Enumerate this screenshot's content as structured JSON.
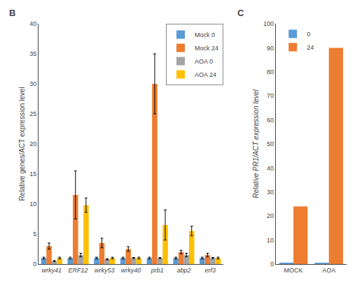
{
  "chart_data": [
    {
      "type": "bar",
      "title": "B",
      "categories": [
        "wrky41",
        "ERF12",
        "wrky53",
        "wrky40",
        "prb1",
        "abp2",
        "erf3"
      ],
      "series": [
        {
          "name": "Mock 0",
          "color": "#5B9BD5",
          "values": [
            1.0,
            1.0,
            1.0,
            1.0,
            1.0,
            1.0,
            1.0
          ],
          "errors": [
            0.15,
            0.15,
            0.15,
            0.15,
            0.15,
            0.15,
            0.15
          ]
        },
        {
          "name": "Mock 24",
          "color": "#ED7D31",
          "values": [
            3.0,
            11.5,
            3.5,
            2.5,
            30.0,
            2.0,
            1.5
          ],
          "errors": [
            0.5,
            4.0,
            0.8,
            0.4,
            5.0,
            0.3,
            0.3
          ]
        },
        {
          "name": "AOA 0",
          "color": "#A5A5A5",
          "values": [
            0.5,
            1.5,
            0.8,
            1.0,
            1.0,
            1.5,
            1.0
          ],
          "errors": [
            0.1,
            0.3,
            0.1,
            0.1,
            0.1,
            0.3,
            0.1
          ]
        },
        {
          "name": "AOA 24",
          "color": "#FFC000",
          "values": [
            1.0,
            9.8,
            1.0,
            1.0,
            6.5,
            5.5,
            1.0
          ],
          "errors": [
            0.15,
            1.2,
            0.15,
            0.15,
            2.5,
            0.8,
            0.15
          ]
        }
      ],
      "ylabel": "Relative genes/ACT expression level",
      "ylim": [
        0,
        40
      ],
      "yticks": [
        0,
        5,
        10,
        15,
        20,
        25,
        30,
        35,
        40
      ],
      "grid": false,
      "legend": "upper right"
    },
    {
      "type": "bar",
      "title": "C",
      "categories": [
        "MOCK",
        "AOA"
      ],
      "series": [
        {
          "name": "0",
          "color": "#5B9BD5",
          "values": [
            0.5,
            0.5
          ]
        },
        {
          "name": "24",
          "color": "#ED7D31",
          "values": [
            24.0,
            90.0
          ]
        }
      ],
      "ylabel": "Relative PR1/ACT expression level",
      "ylim": [
        0,
        100
      ],
      "yticks": [
        0,
        10,
        20,
        30,
        40,
        50,
        60,
        70,
        80,
        90,
        100
      ],
      "grid": false,
      "legend": "upper left"
    }
  ]
}
